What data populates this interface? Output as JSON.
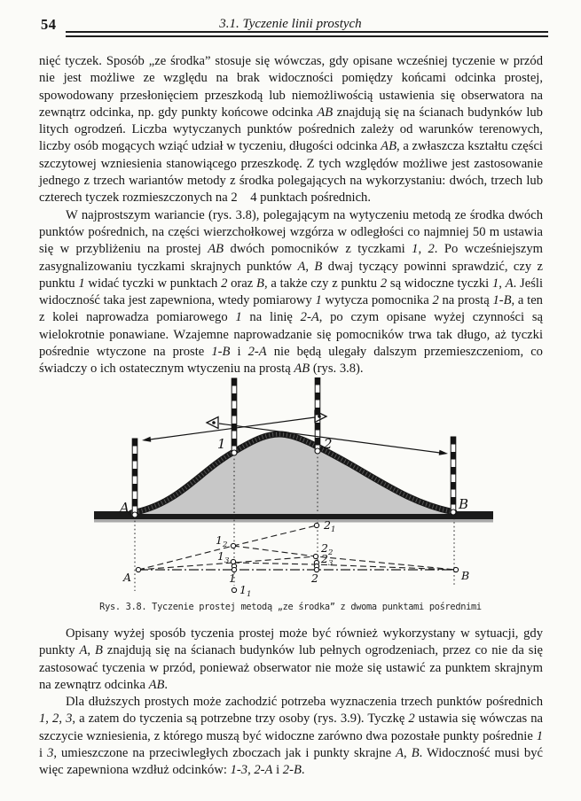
{
  "page": {
    "number": "54",
    "running_head": "3.1. Tyczenie linii prostych"
  },
  "paragraphs": [
    {
      "indent": false,
      "runs": [
        {
          "t": "nięć tyczek. Sposób „ze środka” stosuje się wówczas, gdy opisane wcześniej tyczenie w przód nie jest możliwe ze względu na brak widoczności pomiędzy końcami odcinka prostej, spowodowany przesłonięciem przeszkodą lub niemożliwością ustawienia się obserwatora na zewnątrz odcinka, np. gdy punkty końcowe odcinka "
        },
        {
          "t": "AB",
          "i": true
        },
        {
          "t": " znajdują się na ścianach budynków lub litych ogrodzeń. Liczba wytyczanych punktów pośrednich zależy od warunków terenowych, liczby osób mogących wziąć udział w tyczeniu, długości odcinka "
        },
        {
          "t": "AB",
          "i": true
        },
        {
          "t": ", a zwłaszcza kształtu części szczytowej wzniesienia stanowiącego przeszkodę. Z tych względów możliwe jest zastosowanie jednego z trzech wariantów metody z środka polegających na wykorzystaniu: dwóch, trzech lub czterech tyczek rozmieszczonych na 2  4 punktach pośrednich."
        }
      ]
    },
    {
      "indent": true,
      "runs": [
        {
          "t": "W najprostszym wariancie (rys. 3.8), polegającym na wytyczeniu metodą ze środka dwóch punktów pośrednich, na części wierzchołkowej wzgórza w odległości co najmniej 50 m ustawia się w przybliżeniu na prostej "
        },
        {
          "t": "AB",
          "i": true
        },
        {
          "t": " dwóch pomocników z tyczkami "
        },
        {
          "t": "1",
          "i": true
        },
        {
          "t": ", "
        },
        {
          "t": "2",
          "i": true
        },
        {
          "t": ". Po wcześniejszym zasygnalizowaniu tyczkami skrajnych punktów "
        },
        {
          "t": "A",
          "i": true
        },
        {
          "t": ", "
        },
        {
          "t": "B",
          "i": true
        },
        {
          "t": " dwaj tyczący powinni sprawdzić, czy z punktu "
        },
        {
          "t": "1",
          "i": true
        },
        {
          "t": " widać tyczki w punktach "
        },
        {
          "t": "2",
          "i": true
        },
        {
          "t": " oraz "
        },
        {
          "t": "B",
          "i": true
        },
        {
          "t": ", a także czy z punktu "
        },
        {
          "t": "2",
          "i": true
        },
        {
          "t": " są widoczne tyczki "
        },
        {
          "t": "1",
          "i": true
        },
        {
          "t": ", "
        },
        {
          "t": "A",
          "i": true
        },
        {
          "t": ". Jeśli widoczność taka jest zapewniona, wtedy pomiarowy "
        },
        {
          "t": "1",
          "i": true
        },
        {
          "t": " wytycza pomocnika "
        },
        {
          "t": "2",
          "i": true
        },
        {
          "t": " na prostą "
        },
        {
          "t": "1-B",
          "i": true
        },
        {
          "t": ", a ten z kolei naprowadza pomiarowego "
        },
        {
          "t": "1",
          "i": true
        },
        {
          "t": " na linię "
        },
        {
          "t": "2-A",
          "i": true
        },
        {
          "t": ", po czym opisane wyżej czynności są wielokrotnie ponawiane. Wzajemne naprowadzanie się pomocników trwa tak długo, aż tyczki pośrednie wtyczone na proste "
        },
        {
          "t": "1-B",
          "i": true
        },
        {
          "t": " i "
        },
        {
          "t": "2-A",
          "i": true
        },
        {
          "t": " nie będą ulegały dalszym przemieszczeniom, co świadczy o ich ostatecznym wtyczeniu na prostą "
        },
        {
          "t": "AB",
          "i": true
        },
        {
          "t": " (rys. 3.8)."
        }
      ]
    },
    {
      "indent": true,
      "runs": [
        {
          "t": "Opisany wyżej sposób tyczenia prostej może być również wykorzystany w sytuacji, gdy punkty "
        },
        {
          "t": "A",
          "i": true
        },
        {
          "t": ", "
        },
        {
          "t": "B",
          "i": true
        },
        {
          "t": " znajdują się na ścianach budynków lub pełnych ogrodzeniach, przez co nie da się zastosować tyczenia w przód, ponieważ obserwator nie może się ustawić za punktem skrajnym na zewnątrz odcinka "
        },
        {
          "t": "AB",
          "i": true
        },
        {
          "t": "."
        }
      ]
    },
    {
      "indent": true,
      "runs": [
        {
          "t": "Dla dłuższych prostych może zachodzić potrzeba wyznaczenia trzech punktów pośrednich "
        },
        {
          "t": "1",
          "i": true
        },
        {
          "t": ", "
        },
        {
          "t": "2",
          "i": true
        },
        {
          "t": ", "
        },
        {
          "t": "3",
          "i": true
        },
        {
          "t": ", a zatem do tyczenia są potrzebne trzy osoby (rys. 3.9). Tyczkę "
        },
        {
          "t": "2",
          "i": true
        },
        {
          "t": " ustawia się wówczas na szczycie wzniesienia, z którego muszą być widoczne zarówno dwa pozostałe punkty pośrednie "
        },
        {
          "t": "1",
          "i": true
        },
        {
          "t": " i "
        },
        {
          "t": "3",
          "i": true
        },
        {
          "t": ", umieszczone na przeciwległych zboczach jak i punkty skrajne "
        },
        {
          "t": "A",
          "i": true
        },
        {
          "t": ", "
        },
        {
          "t": "B",
          "i": true
        },
        {
          "t": ". Widoczność musi być więc zapewniona wzdłuż odcinków: "
        },
        {
          "t": "1-3",
          "i": true
        },
        {
          "t": ", "
        },
        {
          "t": "2-A",
          "i": true
        },
        {
          "t": " i "
        },
        {
          "t": "2-B",
          "i": true
        },
        {
          "t": "."
        }
      ]
    }
  ],
  "figure": {
    "caption": "Rys. 3.8. Tyczenie prostej metodą „ze środka” z dwoma punktami pośrednimi",
    "section_labels": {
      "A": "A",
      "B": "B",
      "p1": "1",
      "p2": "2"
    },
    "plan_labels": {
      "A": {
        "base": "A",
        "sub": ""
      },
      "B": {
        "base": "B",
        "sub": ""
      },
      "p1": {
        "base": "1",
        "sub": ""
      },
      "p2": {
        "base": "2",
        "sub": ""
      },
      "p11": {
        "base": "1",
        "sub": "1"
      },
      "p12": {
        "base": "1",
        "sub": "2"
      },
      "p13": {
        "base": "1",
        "sub": "3"
      },
      "p21": {
        "base": "2",
        "sub": "1"
      },
      "p22": {
        "base": "2",
        "sub": "2"
      },
      "p23": {
        "base": "2",
        "sub": "3"
      }
    }
  }
}
